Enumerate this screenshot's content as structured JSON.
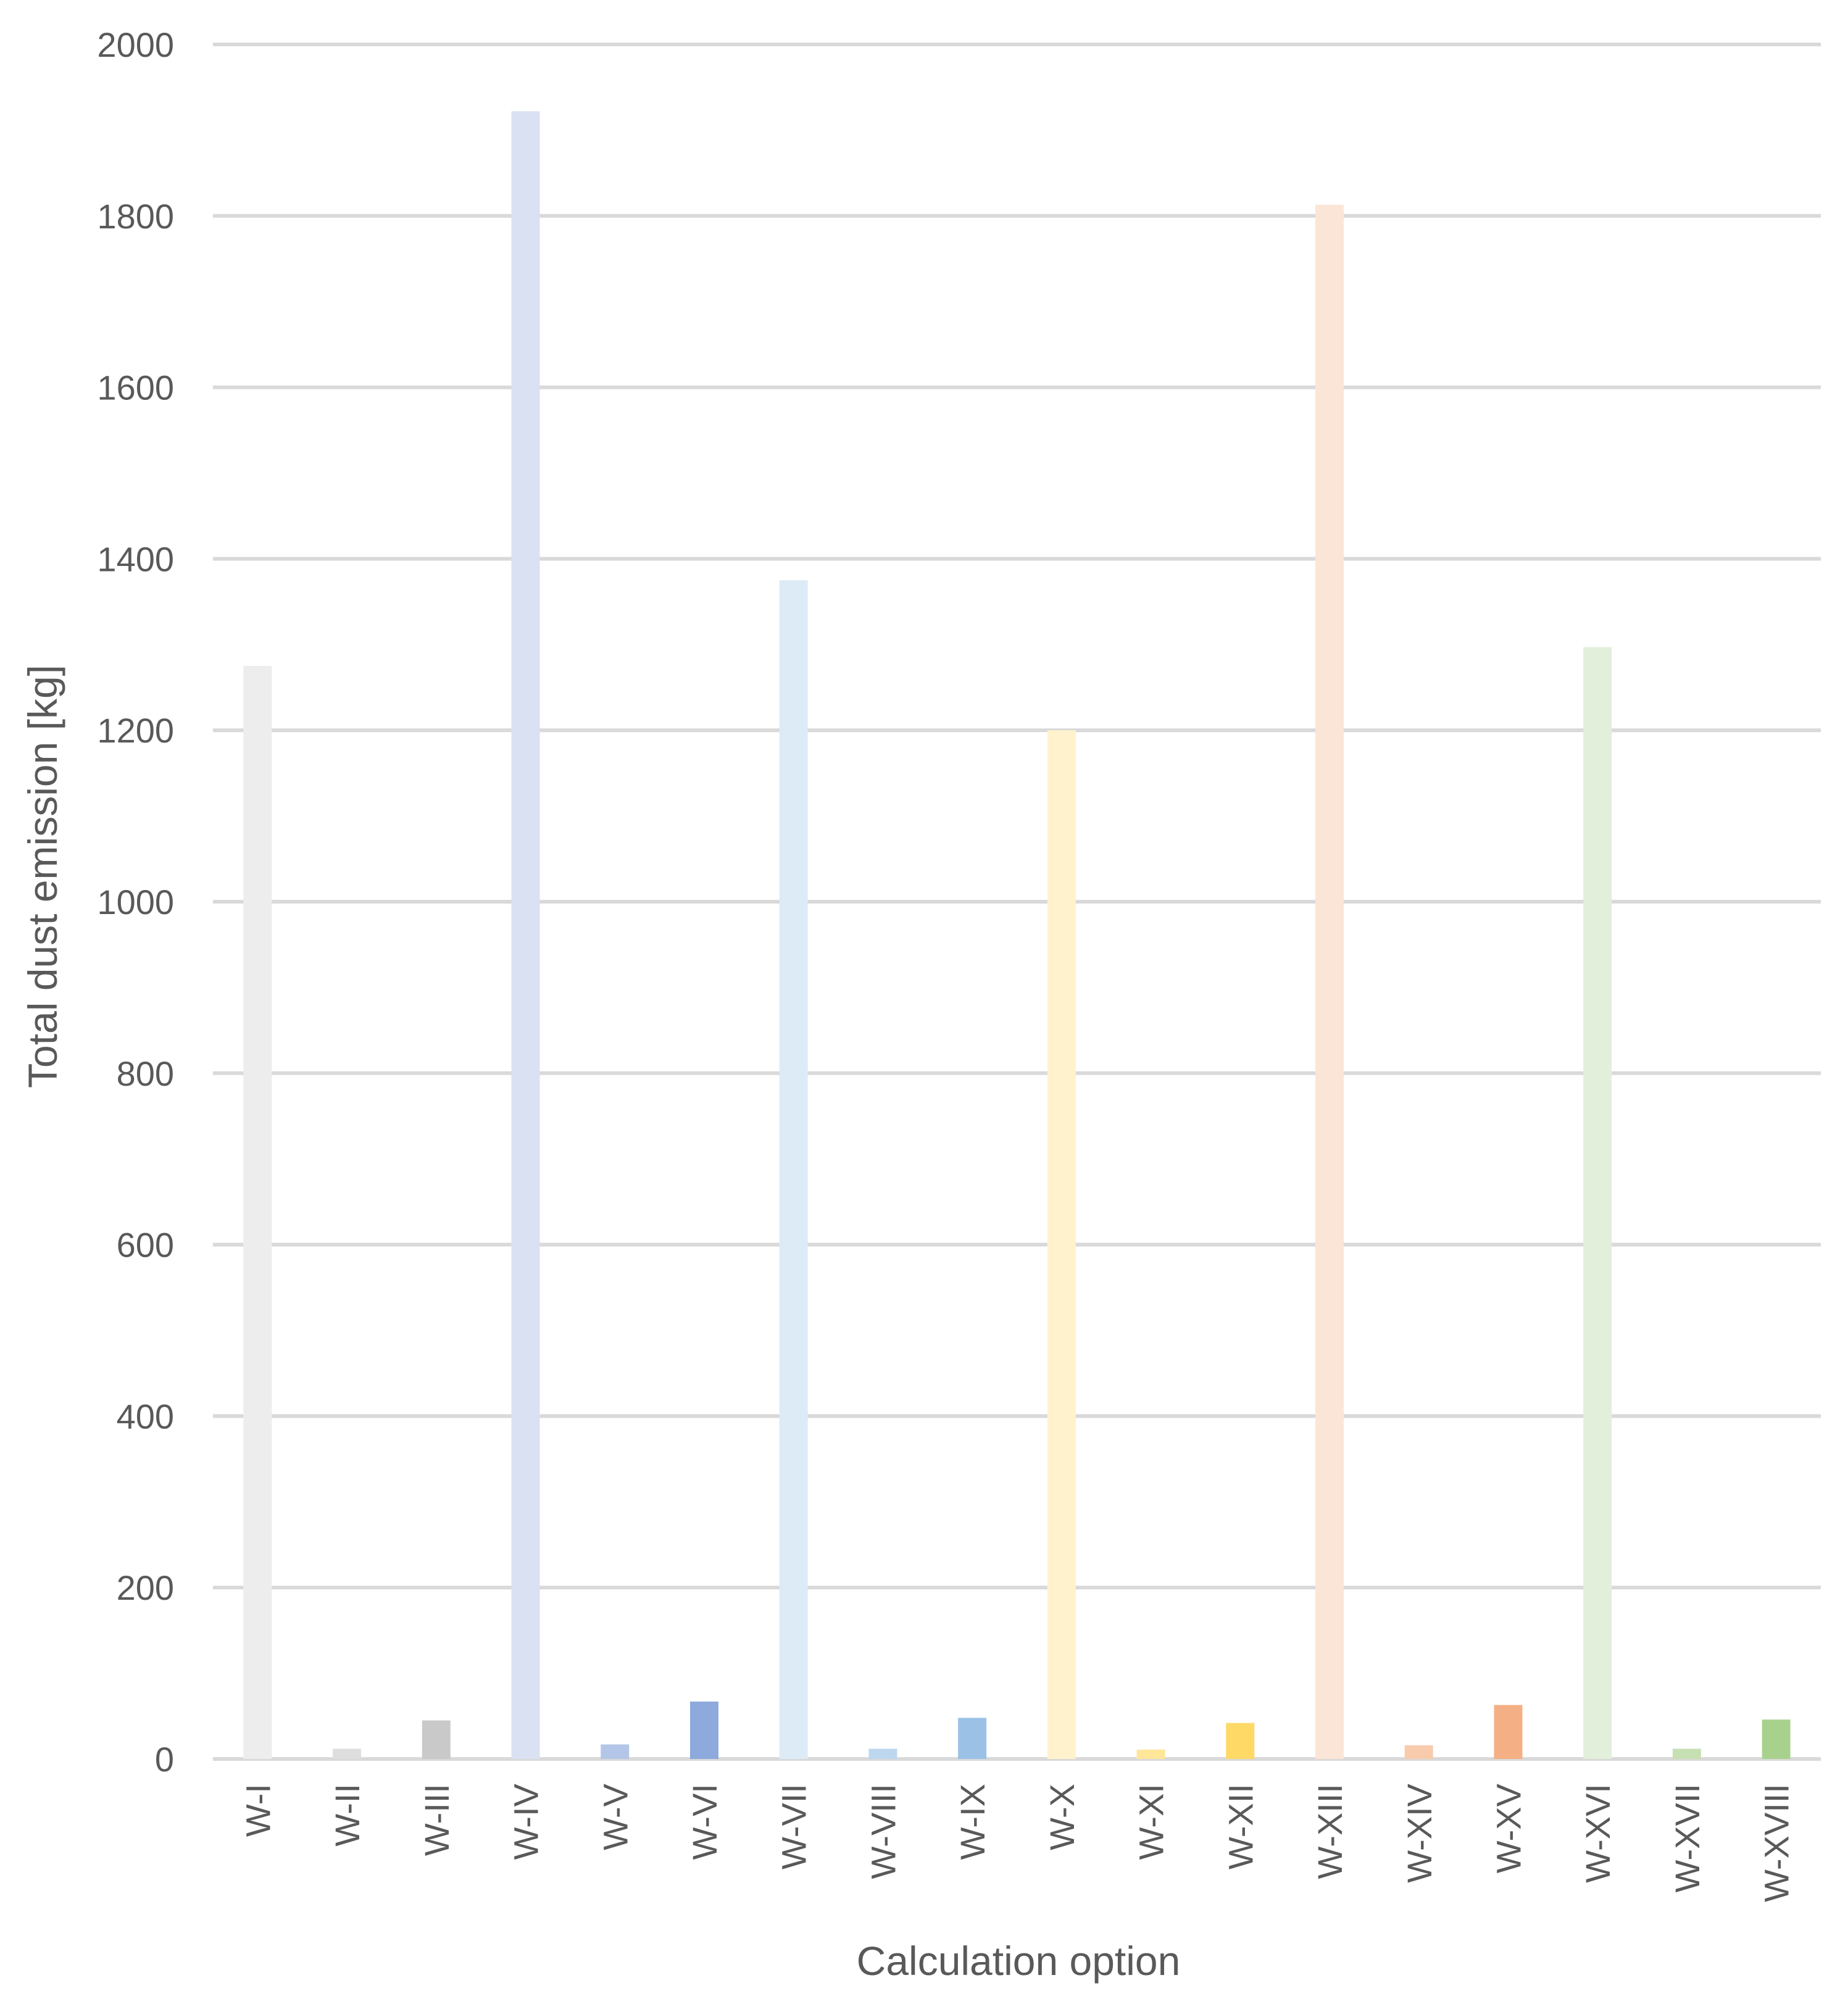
{
  "chart_data": {
    "type": "bar",
    "title": "",
    "xlabel": "Calculation option",
    "ylabel": "Total dust emission [kg]",
    "ylim": [
      0,
      2000
    ],
    "yticks": [
      0,
      200,
      400,
      600,
      800,
      1000,
      1200,
      1400,
      1600,
      1800,
      2000
    ],
    "grid": true,
    "legend": "none",
    "categories": [
      "W-I",
      "W-II",
      "W-III",
      "W-IV",
      "W-V",
      "W-VI",
      "W-VII",
      "W-VIII",
      "W-IX",
      "W-X",
      "W-XI",
      "W-XII",
      "W-XIII",
      "W-XIV",
      "W-XV",
      "W-XVI",
      "W-XVII",
      "W-XVIII"
    ],
    "values": [
      1275,
      12,
      45,
      1922,
      17,
      67,
      1375,
      12,
      48,
      1200,
      11,
      42,
      1813,
      16,
      63,
      1297,
      12,
      46
    ],
    "colors": [
      "#ededed",
      "#dedede",
      "#c9c9c9",
      "#d9e1f2",
      "#b4c6e7",
      "#8ea9db",
      "#ddebf7",
      "#bdd7ee",
      "#9bc2e6",
      "#fff2cc",
      "#ffe699",
      "#ffd966",
      "#fbe5d6",
      "#f8cbad",
      "#f4b084",
      "#e2efda",
      "#c6e0b4",
      "#a9d18e"
    ]
  }
}
